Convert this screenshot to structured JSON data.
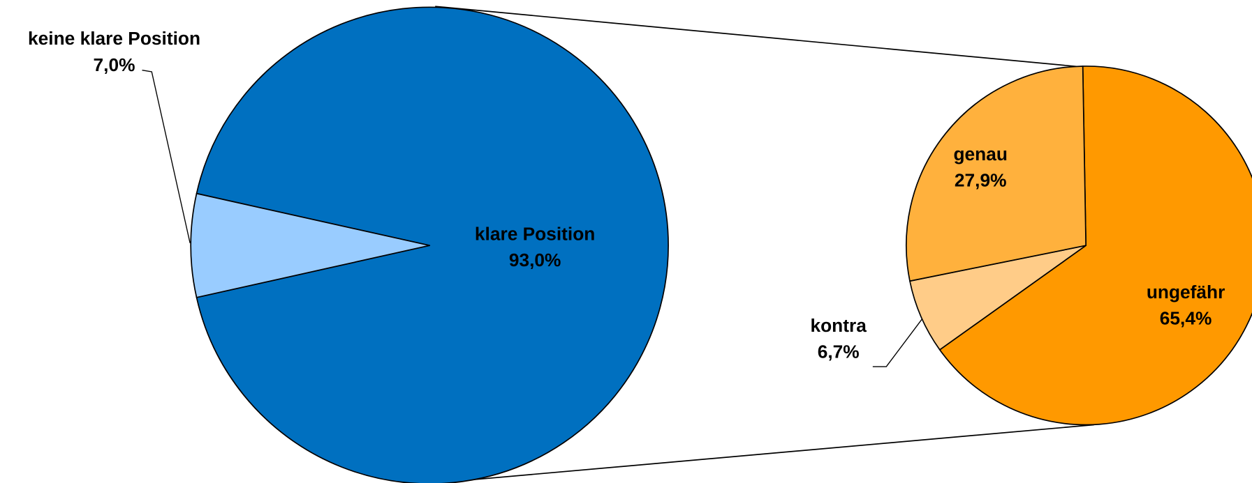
{
  "chart_data": [
    {
      "type": "pie",
      "categories": [
        "klare Position",
        "keine klare Position"
      ],
      "values": [
        93.0,
        7.0
      ],
      "value_labels": [
        "93,0%",
        "7,0%"
      ],
      "colors": [
        "#0070c0",
        "#99ccff"
      ]
    },
    {
      "type": "pie",
      "categories": [
        "ungefähr",
        "kontra",
        "genau"
      ],
      "values": [
        65.4,
        6.7,
        27.9
      ],
      "value_labels": [
        "65,4%",
        "6,7%",
        "27,9%"
      ],
      "colors": [
        "#ff9900",
        "#ffcc88",
        "#ffb13d"
      ]
    }
  ]
}
